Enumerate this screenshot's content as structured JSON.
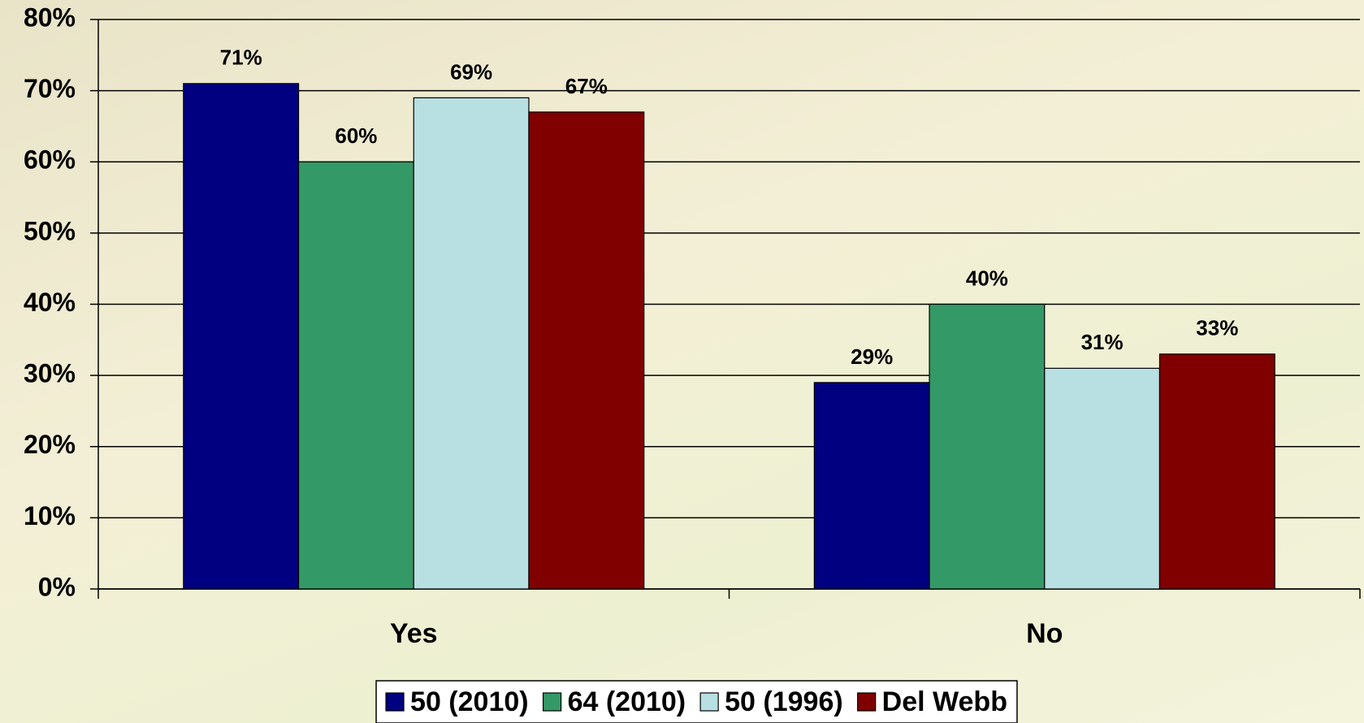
{
  "chart_data": {
    "type": "bar",
    "categories": [
      "Yes",
      "No"
    ],
    "series": [
      {
        "name": "50 (2010)",
        "color": "#000080",
        "values": [
          71,
          29
        ],
        "value_labels": [
          "71%",
          "29%"
        ]
      },
      {
        "name": "64 (2010)",
        "color": "#339966",
        "values": [
          60,
          40
        ],
        "value_labels": [
          "60%",
          "40%"
        ]
      },
      {
        "name": "50 (1996)",
        "color": "#b8dfe2",
        "values": [
          69,
          31
        ],
        "value_labels": [
          "69%",
          "31%"
        ]
      },
      {
        "name": "Del Webb",
        "color": "#800000",
        "values": [
          67,
          33
        ],
        "value_labels": [
          "67%",
          "33%"
        ]
      }
    ],
    "ylim": [
      0,
      80
    ],
    "yticks": [
      {
        "value": 0,
        "label": "0%"
      },
      {
        "value": 10,
        "label": "10%"
      },
      {
        "value": 20,
        "label": "20%"
      },
      {
        "value": 30,
        "label": "30%"
      },
      {
        "value": 40,
        "label": "40%"
      },
      {
        "value": 50,
        "label": "50%"
      },
      {
        "value": 60,
        "label": "60%"
      },
      {
        "value": 70,
        "label": "70%"
      },
      {
        "value": 80,
        "label": "80%"
      }
    ],
    "grid": true,
    "legend": "bottom"
  }
}
